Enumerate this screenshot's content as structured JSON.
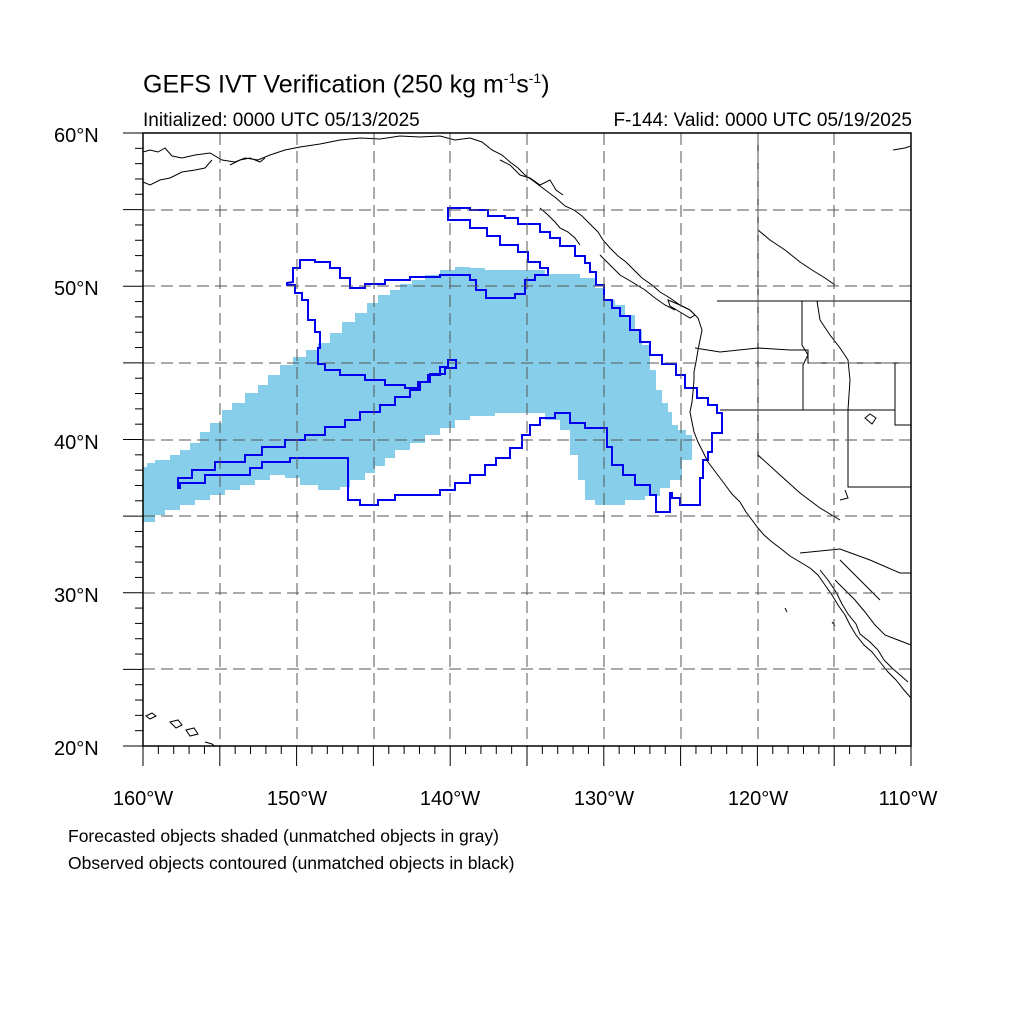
{
  "header": {
    "title": "GEFS IVT Verification (250 kg m",
    "title_exp1": "-1",
    "title_mid": "s",
    "title_exp2": "-1",
    "title_end": ")",
    "initialized": "Initialized: 0000 UTC 05/13/2025",
    "valid": "F-144: Valid: 0000 UTC 05/19/2025"
  },
  "map": {
    "projection": "cylindrical-equidistant",
    "lon_range": [
      -160,
      -110
    ],
    "lat_range": [
      20,
      60
    ],
    "grid": "dashed, every 5 degrees",
    "lat_labels": [
      "60°N",
      "50°N",
      "40°N",
      "30°N",
      "20°N"
    ],
    "lon_labels": [
      "160°W",
      "150°W",
      "140°W",
      "130°W",
      "120°W",
      "110°W"
    ],
    "colors": {
      "forecast_fill": "#87ceeb",
      "observed_contour": "#0000ee",
      "coastline": "#000000"
    }
  },
  "legend": {
    "line1": "Forecasted objects shaded (unmatched objects in gray)",
    "line2": "Observed objects contoured (unmatched objects in black)"
  }
}
